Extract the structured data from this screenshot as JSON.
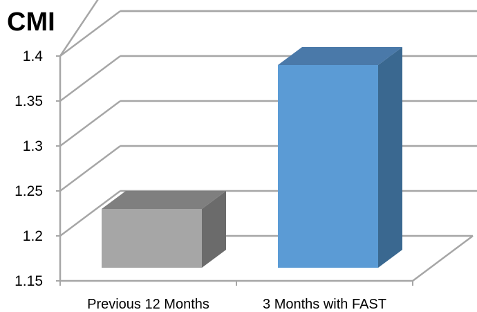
{
  "chart_data": {
    "type": "bar",
    "title": "CMI",
    "categories": [
      "Previous 12 Months",
      "3 Months with FAST"
    ],
    "values": [
      1.23,
      1.39
    ],
    "ylim": [
      1.15,
      1.4
    ],
    "yticks": [
      "1.15",
      "1.2",
      "1.25",
      "1.3",
      "1.35",
      "1.4"
    ],
    "grid": true,
    "style": "3d-column",
    "colors": {
      "bar1": "#a6a6a6",
      "bar2": "#5b9bd5",
      "grid": "#a6a6a6"
    }
  }
}
